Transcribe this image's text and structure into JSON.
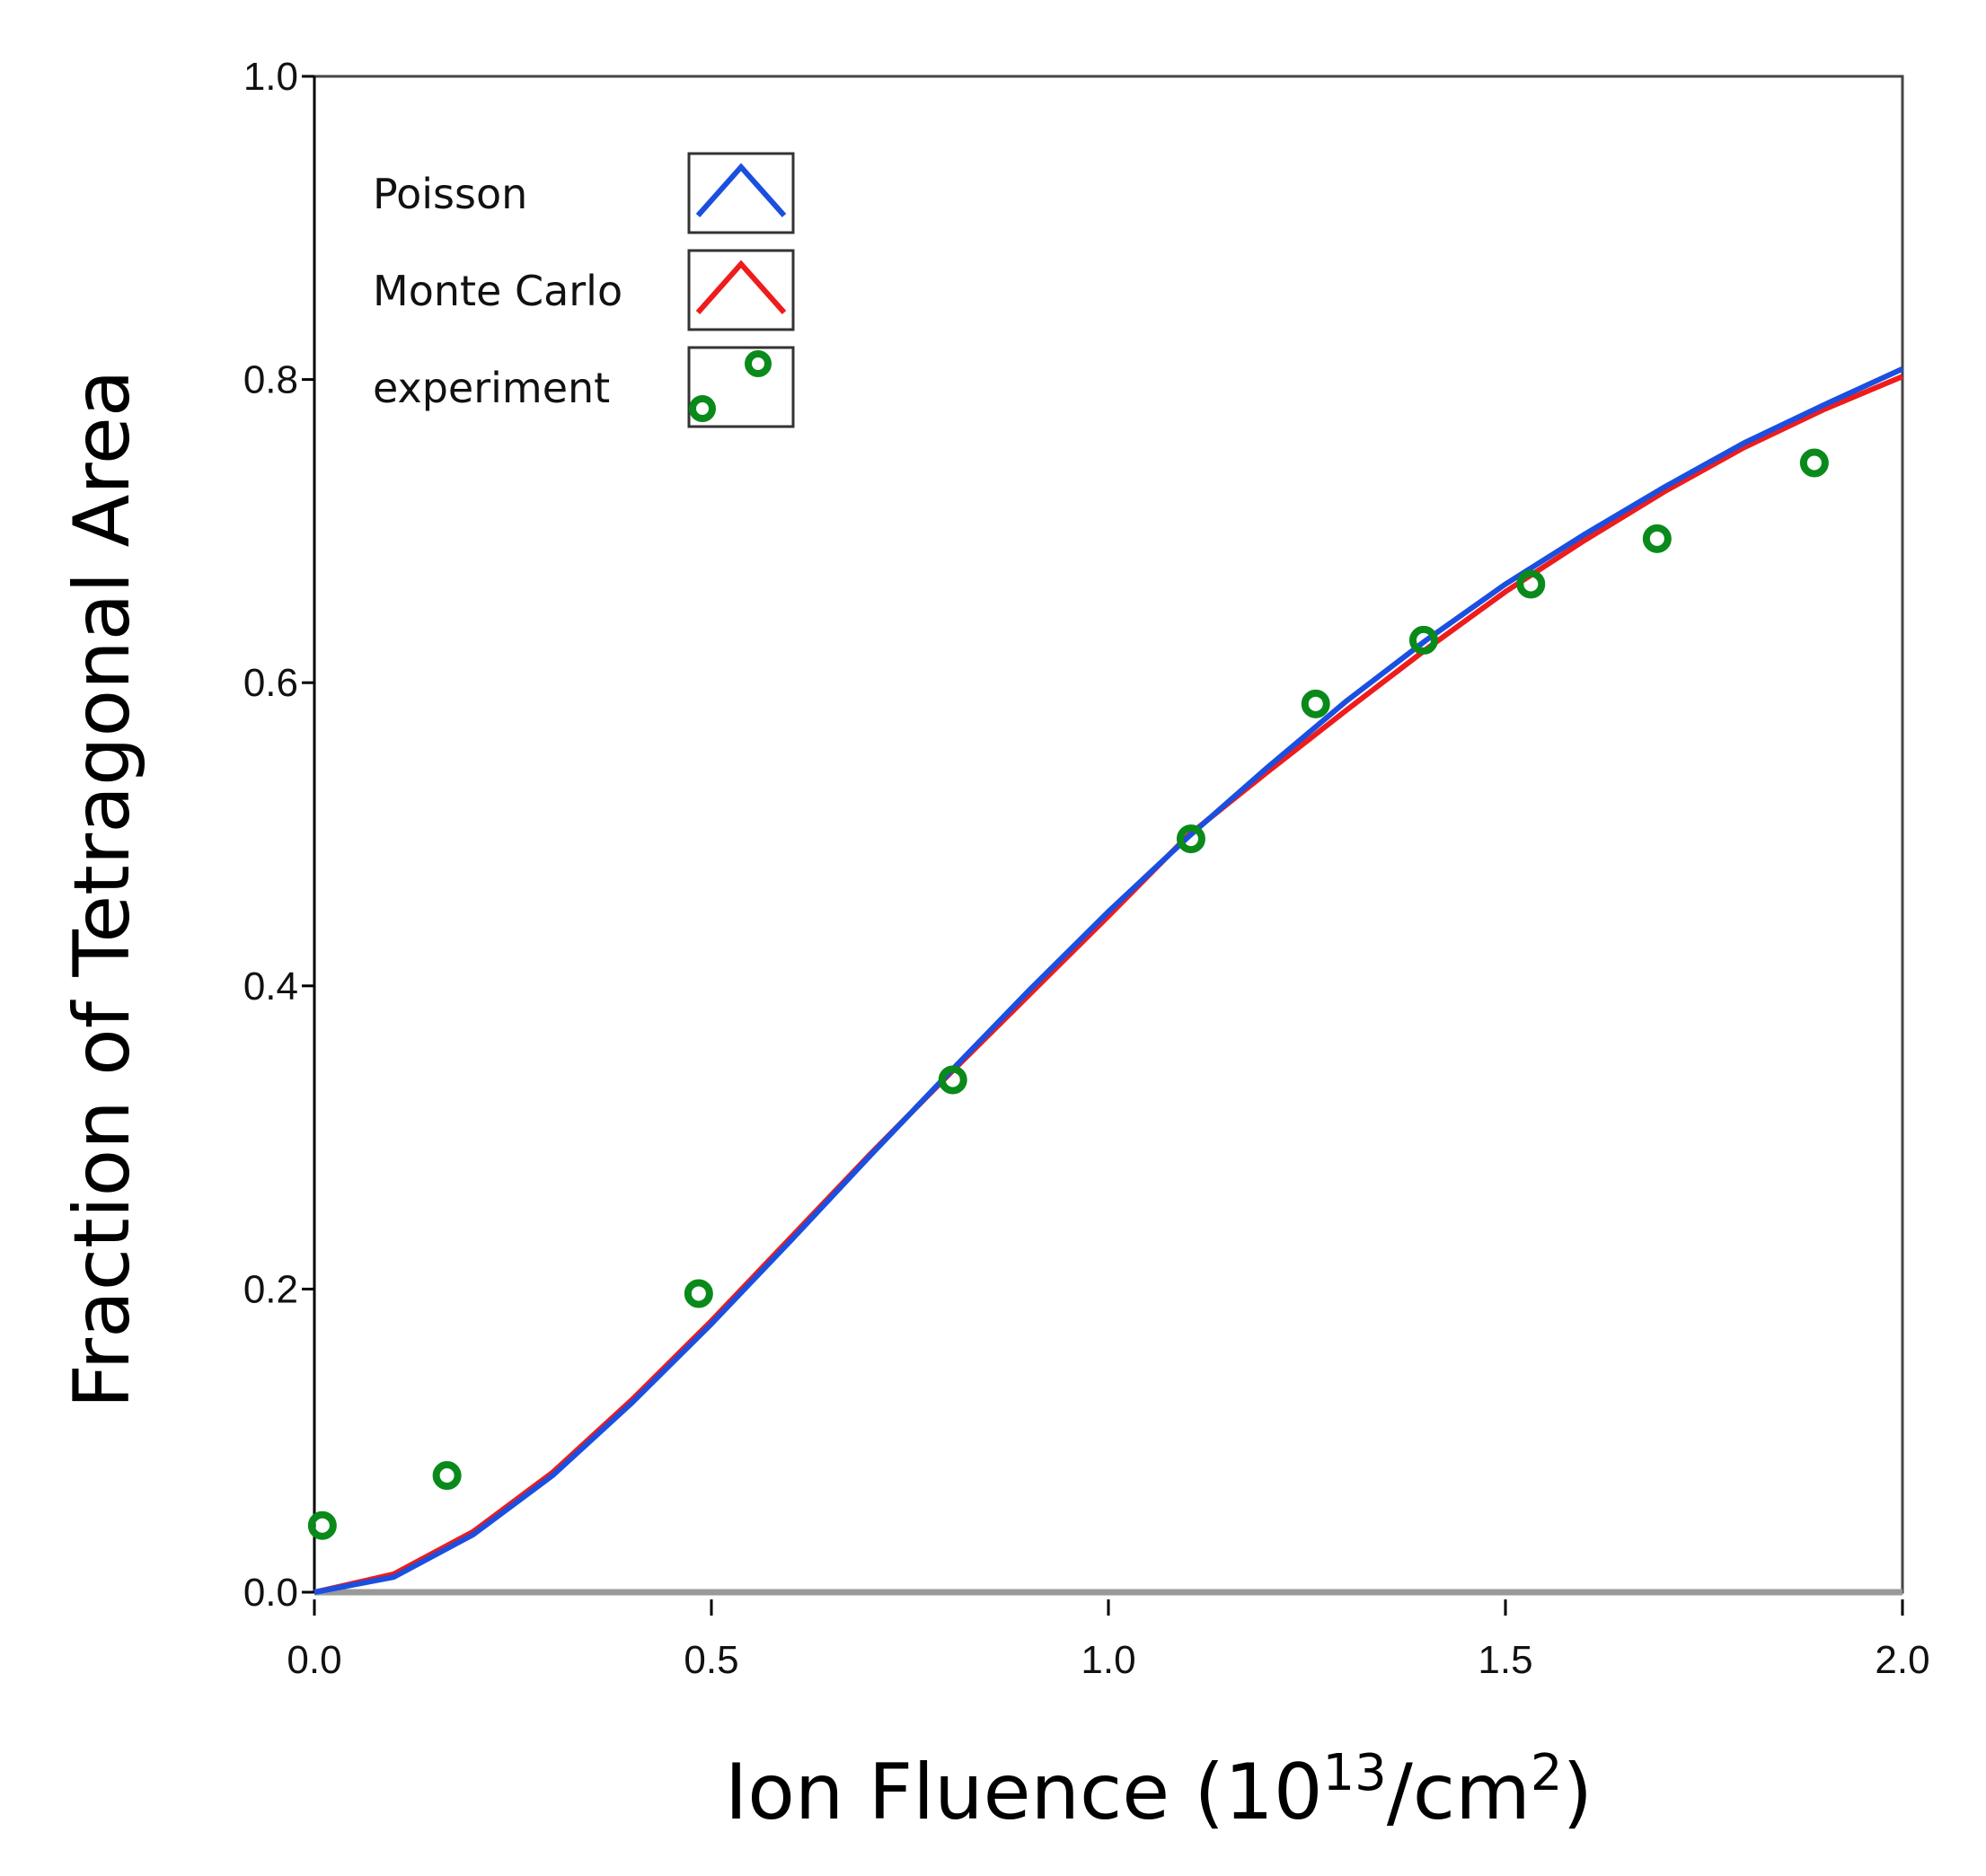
{
  "chart_data": {
    "type": "line",
    "title": "",
    "xlabel": "Ion Fluence (10",
    "xlabel_sup1": "13",
    "xlabel_mid": "/cm",
    "xlabel_sup2": "2",
    "xlabel_end": ")",
    "ylabel": "Fraction of Tetragonal Area",
    "xlim": [
      0,
      2.0
    ],
    "ylim": [
      0,
      1.0
    ],
    "xticks": [
      "0.0",
      "0.5",
      "1.0",
      "1.5",
      "2.0"
    ],
    "yticks": [
      "0.0",
      "0.2",
      "0.4",
      "0.6",
      "0.8",
      "1.0"
    ],
    "grid": false,
    "legend_position": "top-left",
    "series": [
      {
        "name": "Poisson",
        "kind": "line",
        "color": "#1a4fe0",
        "x": [
          0,
          0.1,
          0.2,
          0.3,
          0.4,
          0.5,
          0.6,
          0.7,
          0.8,
          0.9,
          1.0,
          1.1,
          1.2,
          1.3,
          1.4,
          1.5,
          1.6,
          1.7,
          1.8,
          1.9,
          2.0
        ],
        "y": [
          0,
          0.01,
          0.038,
          0.077,
          0.125,
          0.177,
          0.232,
          0.288,
          0.343,
          0.397,
          0.449,
          0.498,
          0.544,
          0.588,
          0.628,
          0.665,
          0.698,
          0.729,
          0.758,
          0.783,
          0.807
        ]
      },
      {
        "name": "Monte Carlo",
        "kind": "line",
        "color": "#ee1c1c",
        "x": [
          0,
          0.1,
          0.2,
          0.3,
          0.4,
          0.5,
          0.6,
          0.7,
          0.8,
          0.9,
          1.0,
          1.1,
          1.2,
          1.3,
          1.4,
          1.5,
          1.6,
          1.7,
          1.8,
          1.9,
          2.0
        ],
        "y": [
          0,
          0.012,
          0.04,
          0.079,
          0.127,
          0.179,
          0.234,
          0.289,
          0.342,
          0.394,
          0.446,
          0.499,
          0.541,
          0.582,
          0.622,
          0.66,
          0.694,
          0.726,
          0.755,
          0.78,
          0.802
        ]
      },
      {
        "name": "experiment",
        "kind": "scatter",
        "color": "#0a8a1a",
        "x": [
          0.01,
          0.167,
          0.484,
          0.804,
          1.104,
          1.261,
          1.397,
          1.532,
          1.691,
          1.889
        ],
        "y": [
          0.044,
          0.077,
          0.197,
          0.338,
          0.497,
          0.586,
          0.628,
          0.665,
          0.695,
          0.745
        ]
      }
    ]
  }
}
